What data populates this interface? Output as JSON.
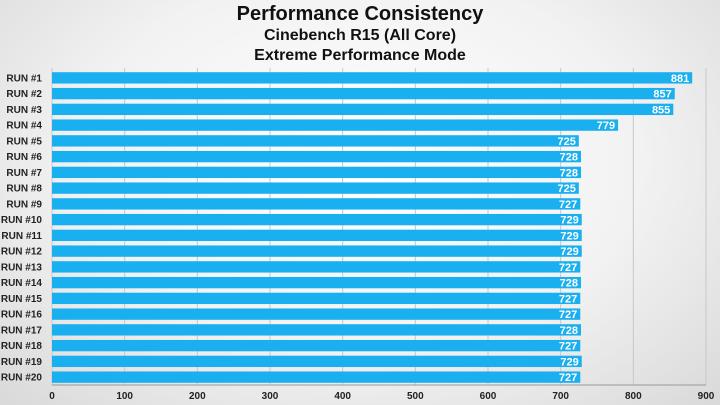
{
  "chart_data": {
    "type": "bar",
    "orientation": "horizontal",
    "title": "Performance Consistency",
    "subtitle": "Cinebench R15 (All Core)",
    "subtitle2": "Extreme Performance Mode",
    "categories": [
      "RUN #1",
      "RUN #2",
      "RUN #3",
      "RUN #4",
      "RUN #5",
      "RUN #6",
      "RUN #7",
      "RUN #8",
      "RUN #9",
      "RUN #10",
      "RUN #11",
      "RUN #12",
      "RUN #13",
      "RUN #14",
      "RUN #15",
      "RUN #16",
      "RUN #17",
      "RUN #18",
      "RUN #19",
      "RUN #20"
    ],
    "values": [
      881,
      857,
      855,
      779,
      725,
      728,
      728,
      725,
      727,
      729,
      729,
      729,
      727,
      728,
      727,
      727,
      728,
      727,
      729,
      727
    ],
    "xlim": [
      0,
      900
    ],
    "xticks": [
      0,
      100,
      200,
      300,
      400,
      500,
      600,
      700,
      800,
      900
    ],
    "grid": true,
    "legend": "none",
    "bar_color": "#1ab0f0"
  }
}
